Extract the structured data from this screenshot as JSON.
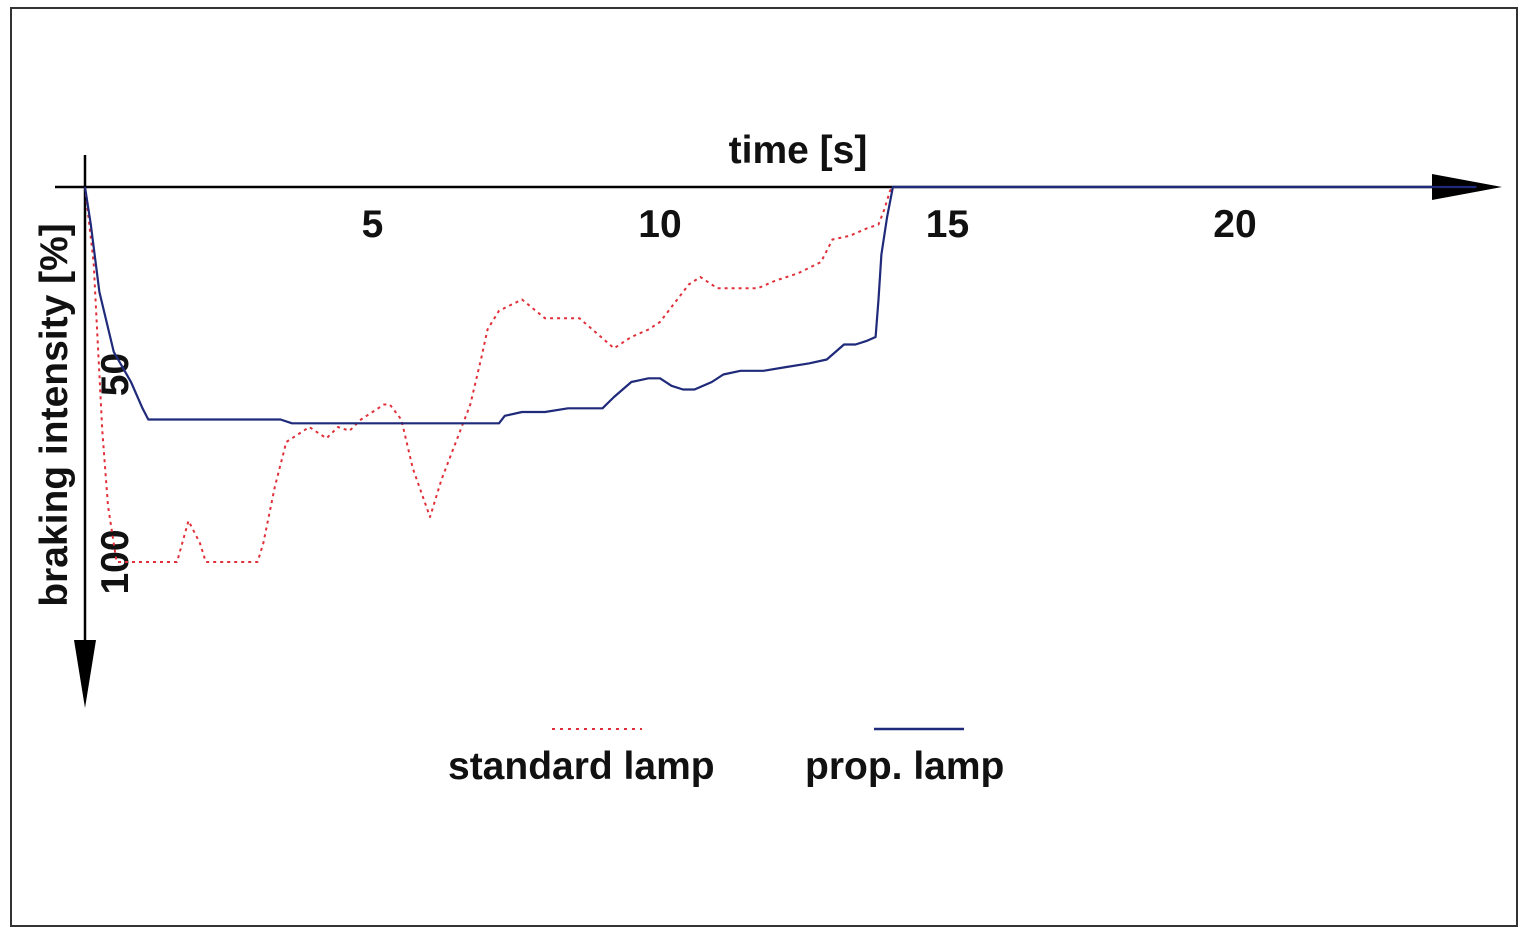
{
  "chart_data": {
    "type": "line",
    "xlabel": "time [s]",
    "ylabel": "braking intensity [%]",
    "x_ticks": [
      5,
      10,
      15,
      20
    ],
    "y_ticks": [
      50,
      100
    ],
    "xlim": [
      0,
      24
    ],
    "ylim": [
      0,
      100
    ],
    "y_inverted": true,
    "axes": "x axis at top with arrow pointing right; y axis at left pointing downward with arrow",
    "legend_position": "bottom-center",
    "series": [
      {
        "name": "standard lamp",
        "color": "#e0303a",
        "style": "dotted",
        "points": [
          [
            0.0,
            0
          ],
          [
            0.15,
            20
          ],
          [
            0.3,
            65
          ],
          [
            0.4,
            85
          ],
          [
            0.55,
            100
          ],
          [
            1.5,
            100
          ],
          [
            1.6,
            100
          ],
          [
            1.8,
            89
          ],
          [
            2.0,
            95
          ],
          [
            2.1,
            100
          ],
          [
            2.8,
            100
          ],
          [
            2.9,
            100
          ],
          [
            3.0,
            100
          ],
          [
            3.1,
            95
          ],
          [
            3.3,
            80
          ],
          [
            3.5,
            68
          ],
          [
            3.7,
            66
          ],
          [
            3.9,
            64
          ],
          [
            4.0,
            65
          ],
          [
            4.2,
            67
          ],
          [
            4.4,
            64
          ],
          [
            4.6,
            65
          ],
          [
            4.8,
            62
          ],
          [
            5.0,
            60
          ],
          [
            5.2,
            58
          ],
          [
            5.3,
            58
          ],
          [
            5.5,
            62
          ],
          [
            5.7,
            75
          ],
          [
            6.0,
            88
          ],
          [
            6.2,
            78
          ],
          [
            6.5,
            66
          ],
          [
            6.7,
            58
          ],
          [
            6.9,
            45
          ],
          [
            7.0,
            38
          ],
          [
            7.2,
            33
          ],
          [
            7.6,
            30
          ],
          [
            8.0,
            35
          ],
          [
            8.3,
            35
          ],
          [
            8.6,
            35
          ],
          [
            8.9,
            39
          ],
          [
            9.2,
            43
          ],
          [
            9.5,
            40
          ],
          [
            9.8,
            38
          ],
          [
            10.0,
            36
          ],
          [
            10.2,
            32
          ],
          [
            10.5,
            26
          ],
          [
            10.7,
            24
          ],
          [
            11.0,
            27
          ],
          [
            11.3,
            27
          ],
          [
            11.7,
            27
          ],
          [
            12.0,
            25
          ],
          [
            12.4,
            23
          ],
          [
            12.8,
            20
          ],
          [
            13.0,
            14
          ],
          [
            13.3,
            13
          ],
          [
            13.6,
            11
          ],
          [
            13.8,
            10
          ],
          [
            13.9,
            6
          ],
          [
            14.0,
            1
          ],
          [
            14.05,
            0
          ],
          [
            18.0,
            0
          ],
          [
            22.0,
            0
          ],
          [
            24.2,
            0
          ]
        ]
      },
      {
        "name": "prop. lamp",
        "color": "#1f2a7a",
        "style": "solid",
        "points": [
          [
            0.0,
            0
          ],
          [
            0.1,
            10
          ],
          [
            0.25,
            28
          ],
          [
            0.5,
            44
          ],
          [
            0.8,
            52
          ],
          [
            1.0,
            59
          ],
          [
            1.1,
            62
          ],
          [
            2.0,
            62
          ],
          [
            3.0,
            62
          ],
          [
            3.4,
            62
          ],
          [
            3.6,
            63
          ],
          [
            4.2,
            63
          ],
          [
            5.0,
            63
          ],
          [
            5.5,
            63
          ],
          [
            6.0,
            63
          ],
          [
            6.5,
            63
          ],
          [
            7.2,
            63
          ],
          [
            7.3,
            61
          ],
          [
            7.6,
            60
          ],
          [
            8.0,
            60
          ],
          [
            8.4,
            59
          ],
          [
            8.8,
            59
          ],
          [
            9.0,
            59
          ],
          [
            9.2,
            56
          ],
          [
            9.5,
            52
          ],
          [
            9.8,
            51
          ],
          [
            10.0,
            51
          ],
          [
            10.2,
            53
          ],
          [
            10.4,
            54
          ],
          [
            10.6,
            54
          ],
          [
            10.9,
            52
          ],
          [
            11.1,
            50
          ],
          [
            11.4,
            49
          ],
          [
            11.8,
            49
          ],
          [
            12.2,
            48
          ],
          [
            12.6,
            47
          ],
          [
            12.9,
            46
          ],
          [
            13.2,
            42
          ],
          [
            13.4,
            42
          ],
          [
            13.6,
            41
          ],
          [
            13.75,
            40
          ],
          [
            13.8,
            30
          ],
          [
            13.85,
            18
          ],
          [
            13.95,
            8
          ],
          [
            14.05,
            0
          ],
          [
            18.0,
            0
          ],
          [
            22.0,
            0
          ],
          [
            24.2,
            0
          ]
        ]
      }
    ]
  }
}
